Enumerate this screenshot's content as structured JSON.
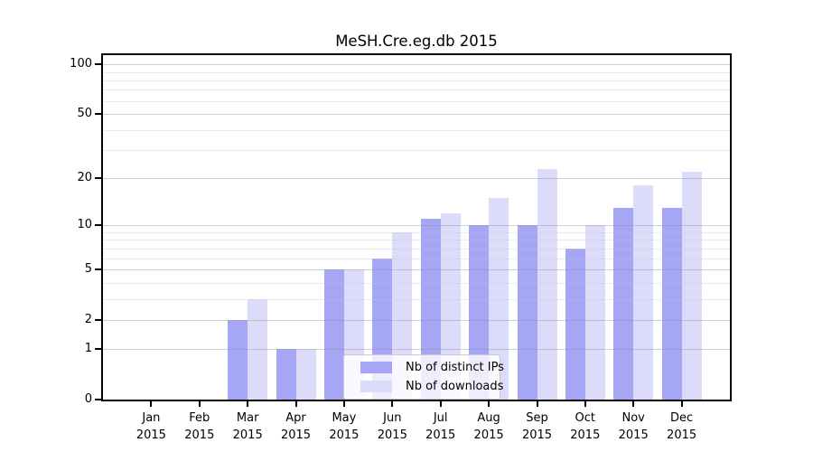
{
  "figure": {
    "title": "MeSH.Cre.eg.db 2015"
  },
  "chart_data": {
    "type": "bar",
    "title": "MeSH.Cre.eg.db 2015",
    "categories": [
      "Jan",
      "Feb",
      "Mar",
      "Apr",
      "May",
      "Jun",
      "Jul",
      "Aug",
      "Sep",
      "Oct",
      "Nov",
      "Dec"
    ],
    "year_label": "2015",
    "series": [
      {
        "name": "Nb of distinct IPs",
        "color": "#a6a6f7",
        "values": [
          0,
          0,
          2,
          1,
          5,
          6,
          11,
          10,
          10,
          7,
          13,
          13
        ]
      },
      {
        "name": "Nb of downloads",
        "color": "#dcdcfa",
        "values": [
          0,
          0,
          3,
          1,
          5,
          9,
          12,
          15,
          23,
          10,
          18,
          22
        ]
      }
    ],
    "xlabel": "",
    "ylabel": "",
    "yaxis": {
      "scale": "log1p",
      "ylim": [
        0,
        113.5
      ],
      "major_ticks": [
        0,
        1,
        2,
        5,
        10,
        20,
        50,
        100
      ],
      "minor_gridlines": [
        3,
        4,
        6,
        7,
        8,
        9,
        30,
        40,
        60,
        70,
        80,
        90
      ]
    },
    "grid": "horizontal",
    "grid_above_bars": true,
    "legend": {
      "position": "lower center-left inside plot",
      "items": [
        "Nb of distinct IPs",
        "Nb of downloads"
      ]
    },
    "colors": {
      "background": "#ffffff",
      "spine": "#000000",
      "grid_major": "#d6d6d6",
      "grid_minor": "#e9e9e9",
      "bar_distinct_ips": "#a6a6f7",
      "bar_downloads": "#dcdcfa"
    }
  }
}
